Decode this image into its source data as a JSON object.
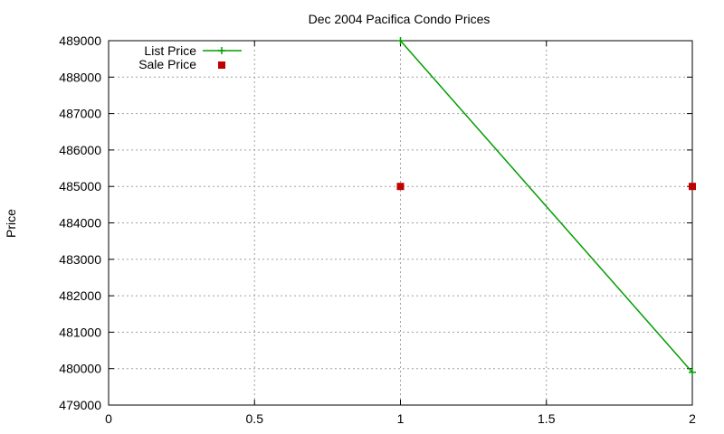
{
  "chart_data": {
    "type": "line",
    "title": "Dec 2004 Pacifica Condo Prices",
    "xlabel": "",
    "ylabel": "Price",
    "xlim": [
      0,
      2
    ],
    "ylim": [
      479000,
      489000
    ],
    "x_ticks": [
      "0",
      "0.5",
      "1",
      "1.5",
      "2"
    ],
    "x_tick_values": [
      0,
      0.5,
      1,
      1.5,
      2
    ],
    "y_ticks": [
      "479000",
      "480000",
      "481000",
      "482000",
      "483000",
      "484000",
      "485000",
      "486000",
      "487000",
      "488000",
      "489000"
    ],
    "y_tick_values": [
      479000,
      480000,
      481000,
      482000,
      483000,
      484000,
      485000,
      486000,
      487000,
      488000,
      489000
    ],
    "grid": true,
    "legend_position": "top-left",
    "series": [
      {
        "name": "List Price",
        "style": "linespoints",
        "marker": "plus",
        "color": "#009e00",
        "x": [
          1,
          2
        ],
        "y": [
          489000,
          479900
        ]
      },
      {
        "name": "Sale Price",
        "style": "points",
        "marker": "square",
        "color": "#c00000",
        "x": [
          1,
          2
        ],
        "y": [
          485000,
          485000
        ]
      }
    ]
  }
}
